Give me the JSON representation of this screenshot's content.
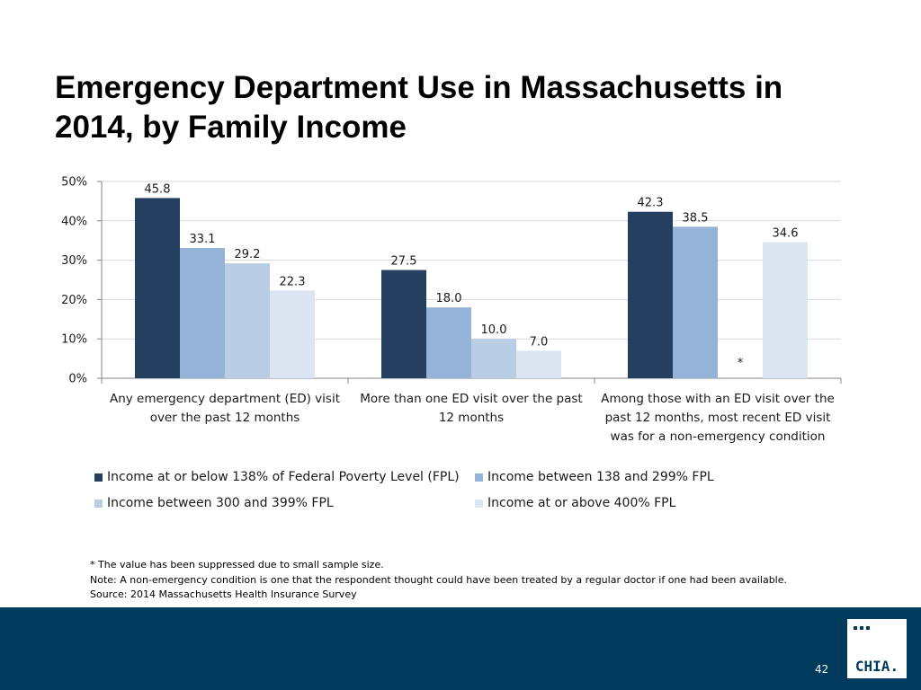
{
  "title": "Emergency Department Use in Massachusetts in 2014, by Family Income",
  "colors": {
    "series": [
      "#243F60",
      "#95B3D7",
      "#B9CDE5",
      "#DCE6F2"
    ],
    "footer": "#003A5D",
    "grid": "#D9D9D9",
    "axis": "#868686"
  },
  "chart_data": {
    "type": "bar",
    "title": "",
    "xlabel": "",
    "ylabel": "",
    "ylim": [
      0,
      50
    ],
    "yticks": [
      "0%",
      "10%",
      "20%",
      "30%",
      "40%",
      "50%"
    ],
    "grid": true,
    "legend_position": "bottom",
    "categories": [
      [
        "Any emergency department (ED) visit",
        "over the past 12 months"
      ],
      [
        "More than one ED visit over the past",
        "12 months"
      ],
      [
        "Among those with an ED visit over the",
        "past 12 months, most recent ED visit",
        "was for a non-emergency condition"
      ]
    ],
    "series": [
      {
        "name": "Income at or below 138% of Federal Poverty Level (FPL)",
        "values": [
          45.8,
          27.5,
          42.3
        ],
        "labels": [
          "45.8",
          "27.5",
          "42.3"
        ]
      },
      {
        "name": "Income between 138 and 299% FPL",
        "values": [
          33.1,
          18.0,
          38.5
        ],
        "labels": [
          "33.1",
          "18.0",
          "38.5"
        ]
      },
      {
        "name": "Income between 300 and 399% FPL",
        "values": [
          29.2,
          10.0,
          null
        ],
        "labels": [
          "29.2",
          "10.0",
          "*"
        ]
      },
      {
        "name": "Income at or above 400% FPL",
        "values": [
          22.3,
          7.0,
          34.6
        ],
        "labels": [
          "22.3",
          "7.0",
          "34.6"
        ]
      }
    ]
  },
  "notes": [
    "* The value has been suppressed due to small sample size.",
    "Note: A non-emergency condition is one that the respondent thought could have been treated by a regular doctor if one had been available.",
    "Source:  2014 Massachusetts Health Insurance Survey"
  ],
  "footer": {
    "page_number": "42",
    "logo_text": "CHIA."
  }
}
